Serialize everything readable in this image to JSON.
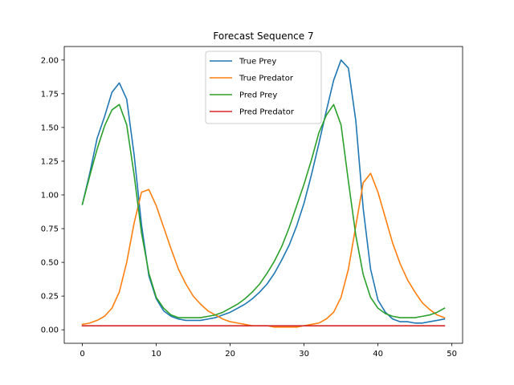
{
  "chart_data": {
    "type": "line",
    "title": "Forecast Sequence 7",
    "xlabel": "",
    "ylabel": "",
    "xlim": [
      -2.45,
      51.45
    ],
    "ylim": [
      -0.1,
      2.1
    ],
    "xticks": [
      0,
      10,
      20,
      30,
      40,
      50
    ],
    "xtick_labels": [
      "0",
      "10",
      "20",
      "30",
      "40",
      "50"
    ],
    "yticks": [
      0,
      0.25,
      0.5,
      0.75,
      1.0,
      1.25,
      1.5,
      1.75,
      2.0
    ],
    "ytick_labels": [
      "0.00",
      "0.25",
      "0.50",
      "0.75",
      "1.00",
      "1.25",
      "1.50",
      "1.75",
      "2.00"
    ],
    "grid": false,
    "legend_position": "upper-center",
    "x": [
      0,
      1,
      2,
      3,
      4,
      5,
      6,
      7,
      8,
      9,
      10,
      11,
      12,
      13,
      14,
      15,
      16,
      17,
      18,
      19,
      20,
      21,
      22,
      23,
      24,
      25,
      26,
      27,
      28,
      29,
      30,
      31,
      32,
      33,
      34,
      35,
      36,
      37,
      38,
      39,
      40,
      41,
      42,
      43,
      44,
      45,
      46,
      47,
      48,
      49
    ],
    "series": [
      {
        "name": "True Prey",
        "color": "#1f77b4",
        "values": [
          0.93,
          1.16,
          1.42,
          1.58,
          1.76,
          1.83,
          1.71,
          1.3,
          0.78,
          0.4,
          0.23,
          0.14,
          0.1,
          0.08,
          0.07,
          0.07,
          0.07,
          0.08,
          0.09,
          0.11,
          0.13,
          0.16,
          0.19,
          0.23,
          0.28,
          0.34,
          0.42,
          0.52,
          0.63,
          0.77,
          0.94,
          1.15,
          1.38,
          1.62,
          1.85,
          2.0,
          1.94,
          1.55,
          0.9,
          0.45,
          0.22,
          0.13,
          0.08,
          0.06,
          0.06,
          0.05,
          0.05,
          0.06,
          0.07,
          0.08
        ]
      },
      {
        "name": "True Predator",
        "color": "#ff7f0e",
        "values": [
          0.04,
          0.05,
          0.07,
          0.1,
          0.16,
          0.28,
          0.5,
          0.79,
          1.02,
          1.04,
          0.92,
          0.76,
          0.6,
          0.45,
          0.34,
          0.25,
          0.19,
          0.14,
          0.11,
          0.08,
          0.06,
          0.05,
          0.04,
          0.03,
          0.03,
          0.03,
          0.02,
          0.02,
          0.02,
          0.02,
          0.03,
          0.04,
          0.05,
          0.08,
          0.13,
          0.24,
          0.45,
          0.77,
          1.09,
          1.16,
          1.02,
          0.83,
          0.64,
          0.49,
          0.37,
          0.28,
          0.2,
          0.15,
          0.11,
          0.09
        ]
      },
      {
        "name": "Pred Prey",
        "color": "#2ca02c",
        "values": [
          0.93,
          1.14,
          1.34,
          1.51,
          1.63,
          1.67,
          1.52,
          1.15,
          0.72,
          0.42,
          0.24,
          0.16,
          0.11,
          0.09,
          0.09,
          0.09,
          0.09,
          0.1,
          0.11,
          0.13,
          0.16,
          0.19,
          0.23,
          0.28,
          0.34,
          0.42,
          0.51,
          0.62,
          0.76,
          0.92,
          1.08,
          1.26,
          1.46,
          1.59,
          1.67,
          1.52,
          1.1,
          0.7,
          0.41,
          0.24,
          0.16,
          0.12,
          0.1,
          0.09,
          0.09,
          0.09,
          0.1,
          0.11,
          0.13,
          0.16
        ]
      },
      {
        "name": "Pred Predator",
        "color": "#d62728",
        "values": [
          0.03,
          0.03,
          0.03,
          0.03,
          0.03,
          0.03,
          0.03,
          0.03,
          0.03,
          0.03,
          0.03,
          0.03,
          0.03,
          0.03,
          0.03,
          0.03,
          0.03,
          0.03,
          0.03,
          0.03,
          0.03,
          0.03,
          0.03,
          0.03,
          0.03,
          0.03,
          0.03,
          0.03,
          0.03,
          0.03,
          0.03,
          0.03,
          0.03,
          0.03,
          0.03,
          0.03,
          0.03,
          0.03,
          0.03,
          0.03,
          0.03,
          0.03,
          0.03,
          0.03,
          0.03,
          0.03,
          0.03,
          0.03,
          0.03,
          0.03
        ]
      }
    ]
  }
}
